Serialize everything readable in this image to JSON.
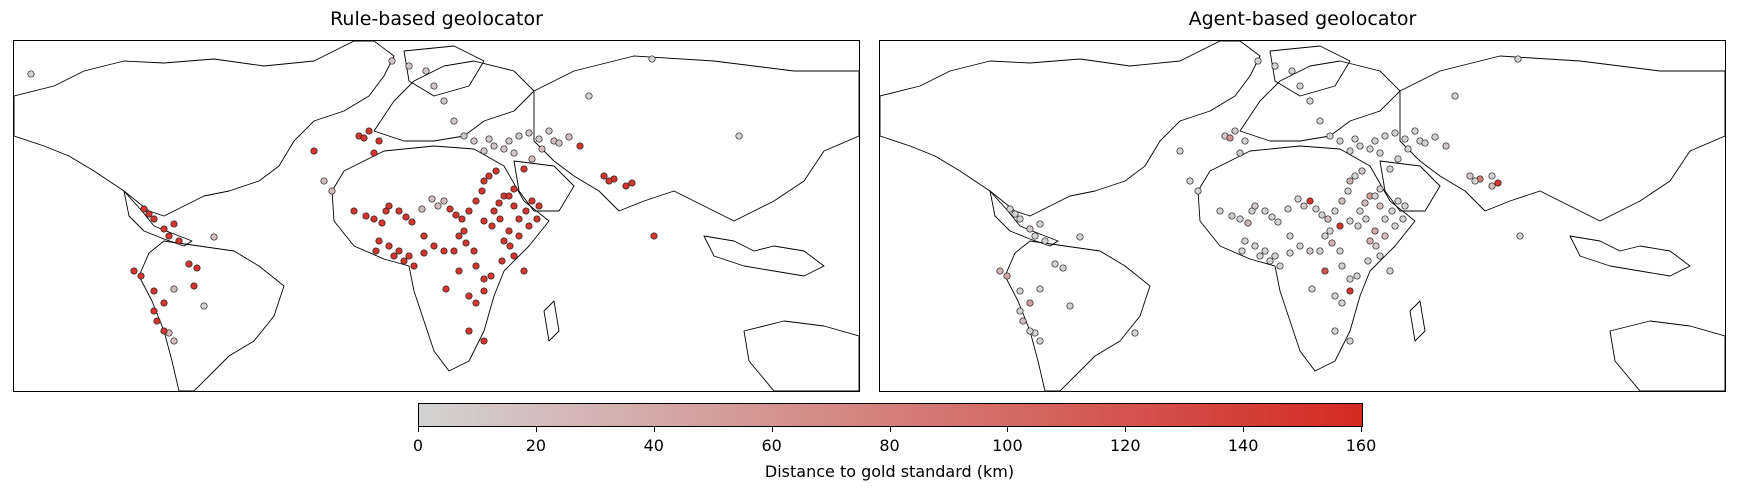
{
  "panels": [
    {
      "title": "Rule-based geolocator"
    },
    {
      "title": "Agent-based geolocator"
    }
  ],
  "colorbar": {
    "label": "Distance to gold standard (km)",
    "min": 0,
    "max": 160,
    "ticks": [
      "0",
      "20",
      "40",
      "60",
      "80",
      "100",
      "120",
      "140",
      "160"
    ],
    "low_color": "#d3d3d3",
    "high_color": "#d42a22"
  },
  "map": {
    "region": "Americas, Africa, Europe, Middle East and South Asia",
    "marker_size_note": "marker color encodes distance (km)"
  },
  "points_rule_based": [
    [
      17,
      33
    ],
    [
      300,
      110
    ],
    [
      345,
      95
    ],
    [
      350,
      97
    ],
    [
      355,
      90
    ],
    [
      360,
      112
    ],
    [
      365,
      100
    ],
    [
      310,
      140
    ],
    [
      318,
      150
    ],
    [
      340,
      170
    ],
    [
      352,
      175
    ],
    [
      360,
      178
    ],
    [
      368,
      182
    ],
    [
      372,
      170
    ],
    [
      375,
      165
    ],
    [
      385,
      170
    ],
    [
      392,
      176
    ],
    [
      398,
      181
    ],
    [
      408,
      168
    ],
    [
      418,
      158
    ],
    [
      424,
      165
    ],
    [
      430,
      160
    ],
    [
      436,
      168
    ],
    [
      442,
      174
    ],
    [
      448,
      178
    ],
    [
      455,
      170
    ],
    [
      462,
      160
    ],
    [
      468,
      150
    ],
    [
      470,
      140
    ],
    [
      475,
      135
    ],
    [
      482,
      130
    ],
    [
      490,
      155
    ],
    [
      500,
      148
    ],
    [
      510,
      128
    ],
    [
      518,
      118
    ],
    [
      528,
      108
    ],
    [
      540,
      100
    ],
    [
      555,
      96
    ],
    [
      566,
      105
    ],
    [
      590,
      135
    ],
    [
      600,
      138
    ],
    [
      612,
      145
    ],
    [
      618,
      142
    ],
    [
      640,
      195
    ],
    [
      130,
      168
    ],
    [
      135,
      173
    ],
    [
      140,
      178
    ],
    [
      150,
      188
    ],
    [
      155,
      195
    ],
    [
      160,
      183
    ],
    [
      165,
      200
    ],
    [
      200,
      196
    ],
    [
      160,
      248
    ],
    [
      150,
      262
    ],
    [
      140,
      270
    ],
    [
      143,
      280
    ],
    [
      155,
      292
    ],
    [
      160,
      300
    ],
    [
      120,
      230
    ],
    [
      127,
      235
    ],
    [
      140,
      250
    ],
    [
      175,
      223
    ],
    [
      183,
      227
    ],
    [
      150,
      290
    ],
    [
      190,
      265
    ],
    [
      410,
      195
    ],
    [
      420,
      205
    ],
    [
      430,
      210
    ],
    [
      445,
      195
    ],
    [
      452,
      202
    ],
    [
      460,
      210
    ],
    [
      445,
      230
    ],
    [
      432,
      248
    ],
    [
      455,
      255
    ],
    [
      462,
      262
    ],
    [
      470,
      250
    ],
    [
      477,
      235
    ],
    [
      488,
      220
    ],
    [
      496,
      205
    ],
    [
      505,
      195
    ],
    [
      515,
      185
    ],
    [
      523,
      178
    ],
    [
      470,
      180
    ],
    [
      478,
      185
    ],
    [
      486,
      178
    ],
    [
      495,
      190
    ],
    [
      505,
      178
    ],
    [
      512,
      170
    ],
    [
      518,
      160
    ],
    [
      525,
      165
    ],
    [
      365,
      200
    ],
    [
      375,
      205
    ],
    [
      385,
      210
    ],
    [
      395,
      215
    ],
    [
      455,
      290
    ],
    [
      470,
      300
    ],
    [
      362,
      210
    ],
    [
      380,
      215
    ],
    [
      390,
      220
    ],
    [
      400,
      225
    ],
    [
      410,
      212
    ],
    [
      440,
      210
    ],
    [
      450,
      190
    ],
    [
      462,
      225
    ],
    [
      470,
      238
    ],
    [
      490,
      200
    ],
    [
      500,
      215
    ],
    [
      510,
      230
    ],
    [
      495,
      155
    ],
    [
      500,
      165
    ],
    [
      480,
      170
    ],
    [
      485,
      162
    ],
    [
      378,
      20
    ],
    [
      395,
      25
    ],
    [
      412,
      30
    ],
    [
      420,
      45
    ],
    [
      430,
      60
    ],
    [
      440,
      80
    ],
    [
      450,
      95
    ],
    [
      460,
      100
    ],
    [
      470,
      110
    ],
    [
      475,
      98
    ],
    [
      480,
      105
    ],
    [
      490,
      108
    ],
    [
      495,
      100
    ],
    [
      500,
      112
    ],
    [
      505,
      95
    ],
    [
      515,
      92
    ],
    [
      525,
      98
    ],
    [
      535,
      90
    ],
    [
      545,
      102
    ],
    [
      575,
      55
    ],
    [
      595,
      140
    ],
    [
      725,
      95
    ],
    [
      638,
      18
    ],
    [
      180,
      245
    ]
  ],
  "values_rule_based": [
    0,
    150,
    150,
    150,
    150,
    150,
    150,
    20,
    20,
    150,
    150,
    150,
    150,
    150,
    150,
    150,
    150,
    150,
    20,
    20,
    20,
    20,
    150,
    150,
    150,
    150,
    150,
    150,
    150,
    150,
    150,
    150,
    150,
    150,
    20,
    20,
    20,
    20,
    150,
    150,
    150,
    150,
    150,
    150,
    150,
    150,
    150,
    150,
    150,
    150,
    150,
    20,
    20,
    150,
    150,
    150,
    20,
    20,
    150,
    150,
    150,
    150,
    150,
    150,
    0,
    150,
    150,
    150,
    150,
    150,
    150,
    150,
    150,
    150,
    150,
    150,
    150,
    150,
    150,
    150,
    150,
    150,
    150,
    150,
    150,
    150,
    150,
    150,
    150,
    150,
    150,
    150,
    150,
    150,
    150,
    150,
    150,
    150,
    150,
    150,
    150,
    150,
    150,
    150,
    150,
    150,
    150,
    150,
    150,
    150,
    150,
    150,
    10,
    10,
    10,
    10,
    10,
    10,
    10,
    10,
    10,
    10,
    10,
    10,
    10,
    10,
    10,
    10,
    10,
    10,
    10,
    0,
    150,
    0,
    0,
    150
  ],
  "points_agent_based": [
    [
      638,
      18
    ],
    [
      300,
      110
    ],
    [
      345,
      95
    ],
    [
      350,
      97
    ],
    [
      355,
      90
    ],
    [
      360,
      112
    ],
    [
      365,
      100
    ],
    [
      310,
      140
    ],
    [
      318,
      150
    ],
    [
      340,
      170
    ],
    [
      352,
      175
    ],
    [
      360,
      178
    ],
    [
      368,
      182
    ],
    [
      372,
      170
    ],
    [
      375,
      165
    ],
    [
      385,
      170
    ],
    [
      392,
      176
    ],
    [
      398,
      181
    ],
    [
      408,
      168
    ],
    [
      418,
      158
    ],
    [
      424,
      165
    ],
    [
      430,
      160
    ],
    [
      436,
      168
    ],
    [
      442,
      174
    ],
    [
      448,
      178
    ],
    [
      455,
      170
    ],
    [
      462,
      160
    ],
    [
      468,
      150
    ],
    [
      470,
      140
    ],
    [
      475,
      135
    ],
    [
      482,
      130
    ],
    [
      490,
      155
    ],
    [
      500,
      148
    ],
    [
      510,
      128
    ],
    [
      518,
      118
    ],
    [
      528,
      108
    ],
    [
      540,
      100
    ],
    [
      555,
      96
    ],
    [
      566,
      105
    ],
    [
      590,
      135
    ],
    [
      600,
      138
    ],
    [
      612,
      145
    ],
    [
      618,
      142
    ],
    [
      640,
      195
    ],
    [
      130,
      168
    ],
    [
      135,
      173
    ],
    [
      140,
      178
    ],
    [
      150,
      188
    ],
    [
      155,
      195
    ],
    [
      160,
      183
    ],
    [
      165,
      200
    ],
    [
      200,
      196
    ],
    [
      160,
      248
    ],
    [
      150,
      262
    ],
    [
      140,
      270
    ],
    [
      143,
      280
    ],
    [
      155,
      292
    ],
    [
      160,
      300
    ],
    [
      120,
      230
    ],
    [
      127,
      235
    ],
    [
      140,
      250
    ],
    [
      175,
      223
    ],
    [
      183,
      227
    ],
    [
      150,
      290
    ],
    [
      190,
      265
    ],
    [
      410,
      195
    ],
    [
      420,
      205
    ],
    [
      430,
      210
    ],
    [
      445,
      195
    ],
    [
      452,
      202
    ],
    [
      460,
      210
    ],
    [
      445,
      230
    ],
    [
      432,
      248
    ],
    [
      455,
      255
    ],
    [
      462,
      262
    ],
    [
      470,
      250
    ],
    [
      477,
      235
    ],
    [
      488,
      220
    ],
    [
      496,
      205
    ],
    [
      505,
      195
    ],
    [
      515,
      185
    ],
    [
      523,
      178
    ],
    [
      470,
      180
    ],
    [
      478,
      185
    ],
    [
      486,
      178
    ],
    [
      495,
      190
    ],
    [
      505,
      178
    ],
    [
      512,
      170
    ],
    [
      518,
      160
    ],
    [
      525,
      165
    ],
    [
      365,
      200
    ],
    [
      375,
      205
    ],
    [
      385,
      210
    ],
    [
      395,
      215
    ],
    [
      455,
      290
    ],
    [
      470,
      300
    ],
    [
      362,
      210
    ],
    [
      380,
      215
    ],
    [
      390,
      220
    ],
    [
      400,
      225
    ],
    [
      410,
      212
    ],
    [
      440,
      210
    ],
    [
      450,
      190
    ],
    [
      462,
      225
    ],
    [
      470,
      238
    ],
    [
      490,
      200
    ],
    [
      500,
      215
    ],
    [
      510,
      230
    ],
    [
      495,
      155
    ],
    [
      500,
      165
    ],
    [
      480,
      170
    ],
    [
      485,
      162
    ],
    [
      378,
      20
    ],
    [
      395,
      25
    ],
    [
      412,
      30
    ],
    [
      420,
      45
    ],
    [
      430,
      60
    ],
    [
      440,
      80
    ],
    [
      450,
      95
    ],
    [
      460,
      100
    ],
    [
      470,
      110
    ],
    [
      475,
      98
    ],
    [
      480,
      105
    ],
    [
      490,
      108
    ],
    [
      495,
      100
    ],
    [
      500,
      112
    ],
    [
      505,
      95
    ],
    [
      515,
      92
    ],
    [
      525,
      98
    ],
    [
      535,
      90
    ],
    [
      545,
      102
    ],
    [
      575,
      55
    ],
    [
      595,
      140
    ],
    [
      612,
      135
    ],
    [
      460,
      185
    ],
    [
      255,
      292
    ]
  ],
  "values_agent_based": [
    0,
    0,
    10,
    60,
    10,
    10,
    0,
    0,
    0,
    0,
    10,
    0,
    30,
    0,
    10,
    0,
    0,
    0,
    0,
    0,
    10,
    150,
    0,
    0,
    20,
    0,
    20,
    0,
    30,
    0,
    10,
    50,
    10,
    0,
    0,
    0,
    0,
    0,
    10,
    10,
    80,
    20,
    150,
    0,
    0,
    0,
    0,
    10,
    0,
    0,
    0,
    0,
    0,
    50,
    0,
    20,
    0,
    0,
    30,
    40,
    0,
    0,
    0,
    0,
    0,
    0,
    0,
    10,
    0,
    30,
    0,
    120,
    0,
    0,
    0,
    150,
    0,
    0,
    10,
    20,
    0,
    0,
    0,
    0,
    0,
    40,
    0,
    0,
    0,
    0,
    0,
    0,
    0,
    0,
    0,
    0,
    0,
    0,
    0,
    0,
    0,
    0,
    0,
    0,
    0,
    30,
    0,
    0,
    0,
    20,
    0,
    20,
    0,
    0,
    0,
    0,
    0,
    0,
    0,
    0,
    0,
    0,
    0,
    0,
    0,
    0,
    0,
    0,
    0,
    0,
    0,
    0,
    0,
    0,
    150,
    0
  ]
}
